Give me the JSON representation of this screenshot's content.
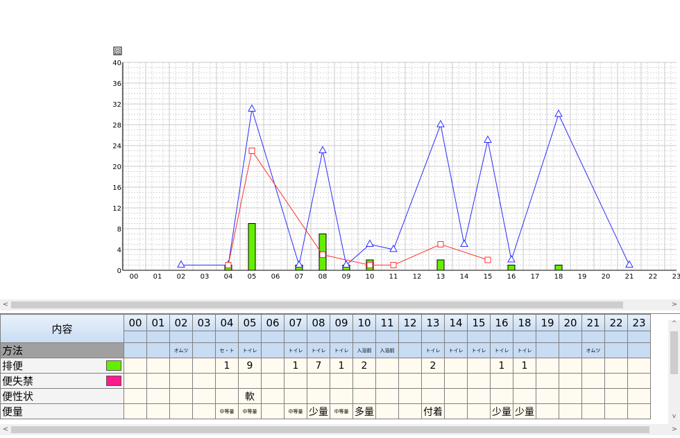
{
  "chart_data": {
    "type": "line",
    "corner_button": "回",
    "categories": [
      "00",
      "01",
      "02",
      "03",
      "04",
      "05",
      "06",
      "07",
      "08",
      "09",
      "10",
      "11",
      "12",
      "13",
      "14",
      "15",
      "16",
      "17",
      "18",
      "19",
      "20",
      "21",
      "22",
      "23"
    ],
    "y_ticks": [
      0,
      4,
      8,
      12,
      16,
      20,
      24,
      28,
      32,
      36,
      40
    ],
    "ylim": [
      0,
      40
    ],
    "grid": true,
    "series": [
      {
        "marker": "triangle",
        "color": "#2a2aff",
        "points": [
          [
            2,
            1
          ],
          [
            4,
            1
          ],
          [
            5,
            31
          ],
          [
            7,
            1
          ],
          [
            8,
            23
          ],
          [
            9,
            1
          ],
          [
            10,
            5
          ],
          [
            11,
            4
          ],
          [
            13,
            28
          ],
          [
            14,
            5
          ],
          [
            15,
            25
          ],
          [
            16,
            2
          ],
          [
            18,
            30
          ],
          [
            21,
            1
          ]
        ]
      },
      {
        "marker": "square",
        "color": "#ff3030",
        "points": [
          [
            4,
            1
          ],
          [
            5,
            23
          ],
          [
            8,
            3
          ],
          [
            10,
            1
          ],
          [
            11,
            1
          ],
          [
            13,
            5
          ],
          [
            15,
            2
          ]
        ]
      },
      {
        "type": "bar",
        "color": "#66ee00",
        "points": [
          [
            4,
            1
          ],
          [
            5,
            9
          ],
          [
            7,
            1
          ],
          [
            8,
            7
          ],
          [
            9,
            1
          ],
          [
            10,
            2
          ],
          [
            13,
            2
          ],
          [
            16,
            1
          ],
          [
            18,
            1
          ]
        ]
      }
    ]
  },
  "table": {
    "corner_label": "内容",
    "hours": [
      "00",
      "01",
      "02",
      "03",
      "04",
      "05",
      "06",
      "07",
      "08",
      "09",
      "10",
      "11",
      "12",
      "13",
      "14",
      "15",
      "16",
      "18",
      "19",
      "20",
      "21",
      "22",
      "23"
    ],
    "rows": [
      {
        "label": "方法",
        "kind": "method",
        "swatch": null,
        "cells": [
          "",
          "",
          "オムツ",
          "",
          "セ・ト",
          "トイレ",
          "",
          "トイレ",
          "トイレ",
          "トイレ",
          "入浴前",
          "入浴前",
          "",
          "トイレ",
          "トイレ",
          "トイレ",
          "トイレ",
          "トイレ",
          "",
          "",
          "オムツ",
          "",
          ""
        ]
      },
      {
        "label": "排便",
        "kind": "normal",
        "swatch": "#66ee00",
        "cells": [
          "",
          "",
          "",
          "",
          "1",
          "9",
          "",
          "1",
          "7",
          "1",
          "2",
          "",
          "",
          "2",
          "",
          "",
          "1",
          "1",
          "",
          "",
          "",
          "",
          ""
        ]
      },
      {
        "label": "便失禁",
        "kind": "normal",
        "swatch": "#ff1a8c",
        "cells": [
          "",
          "",
          "",
          "",
          "",
          "",
          "",
          "",
          "",
          "",
          "",
          "",
          "",
          "",
          "",
          "",
          "",
          "",
          "",
          "",
          "",
          "",
          ""
        ]
      },
      {
        "label": "便性状",
        "kind": "normal",
        "swatch": null,
        "cells": [
          "",
          "",
          "",
          "",
          "",
          "軟",
          "",
          "",
          "",
          "",
          "",
          "",
          "",
          "",
          "",
          "",
          "",
          "",
          "",
          "",
          "",
          "",
          ""
        ]
      },
      {
        "label": "便量",
        "kind": "normal",
        "swatch": null,
        "cells": [
          "",
          "",
          "",
          "",
          "中等量",
          "中等量",
          "",
          "中等量",
          "少量",
          "中等量",
          "多量",
          "",
          "",
          "付着",
          "",
          "",
          "少量",
          "少量",
          "",
          "",
          "",
          "",
          ""
        ]
      }
    ]
  },
  "scrollbars": {
    "left_arrow": "<",
    "right_arrow": ">",
    "up_arrow": "^",
    "down_arrow": "v"
  }
}
